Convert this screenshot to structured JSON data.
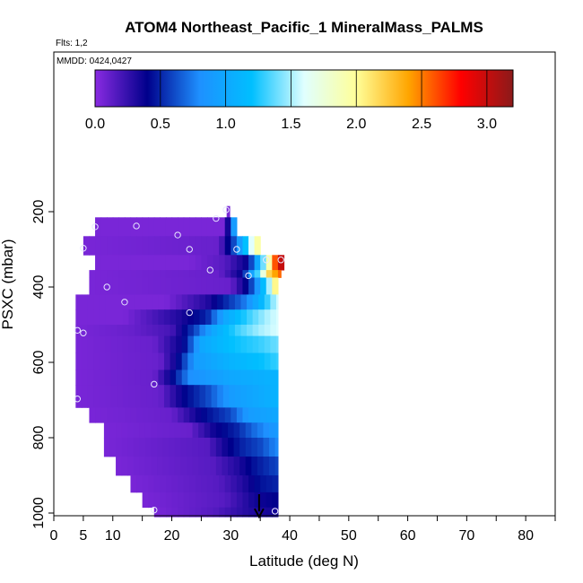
{
  "chart_data": {
    "type": "heatmap",
    "title": "ATOM4 Northeast_Pacific_1 MineralMass_PALMS",
    "subtitle_flights": "Flts: 1,2",
    "subtitle_dates": "MMDD: 0424,0427",
    "xlabel": "Latitude (deg N)",
    "ylabel": "PSXC (mbar)",
    "xlim": [
      0,
      85
    ],
    "ylim": [
      1010,
      30
    ],
    "y_inverted": true,
    "grid": false,
    "x_ticks": [
      "0",
      "5",
      "10",
      "20",
      "30",
      "40",
      "50",
      "60",
      "70",
      "80"
    ],
    "y_ticks": [
      "200",
      "400",
      "600",
      "800",
      "1000"
    ],
    "colorbar": {
      "range": [
        0,
        3.2
      ],
      "ticks": [
        "0.0",
        "0.5",
        "1.0",
        "1.5",
        "2.0",
        "2.5",
        "3.0"
      ],
      "colors": [
        "#8a2be2",
        "#00008b",
        "#1e90ff",
        "#00bfff",
        "#e0ffff",
        "#ffff99",
        "#ffa500",
        "#ff0000",
        "#8b1a1a"
      ]
    },
    "rows": [
      {
        "p_top": 185,
        "p_bot": 215,
        "lat_min": 29.3,
        "lat_max": 29.8,
        "vals": [
          [
            29.3,
            0.05
          ]
        ]
      },
      {
        "p_top": 215,
        "p_bot": 265,
        "lat_min": 7,
        "lat_max": 31,
        "vals": [
          [
            7,
            0.05
          ],
          [
            29,
            0.05
          ],
          [
            29.6,
            0.4
          ],
          [
            30.5,
            0.9
          ]
        ]
      },
      {
        "p_top": 265,
        "p_bot": 315,
        "lat_min": 5,
        "lat_max": 35,
        "vals": [
          [
            5,
            0.05
          ],
          [
            28,
            0.1
          ],
          [
            30.5,
            0.6
          ],
          [
            32.5,
            1.2
          ],
          [
            34,
            1.8
          ],
          [
            35,
            2.1
          ]
        ]
      },
      {
        "p_top": 315,
        "p_bot": 355,
        "lat_min": 7,
        "lat_max": 39,
        "vals": [
          [
            7,
            0.05
          ],
          [
            23,
            0.05
          ],
          [
            29,
            0.15
          ],
          [
            33,
            0.4
          ],
          [
            36,
            1.6
          ],
          [
            37.5,
            2.6
          ],
          [
            39,
            3.2
          ]
        ]
      },
      {
        "p_top": 355,
        "p_bot": 375,
        "lat_min": 6,
        "lat_max": 38.5,
        "vals": [
          [
            6,
            0.05
          ],
          [
            28,
            0.1
          ],
          [
            32,
            0.4
          ],
          [
            35,
            1.5
          ],
          [
            36.5,
            2.2
          ],
          [
            38.5,
            2.6
          ]
        ]
      },
      {
        "p_top": 375,
        "p_bot": 420,
        "lat_min": 6,
        "lat_max": 38,
        "vals": [
          [
            6,
            0.05
          ],
          [
            30,
            0.1
          ],
          [
            33,
            0.45
          ],
          [
            35,
            1.0
          ],
          [
            36.5,
            1.5
          ],
          [
            38,
            2.3
          ]
        ]
      },
      {
        "p_top": 420,
        "p_bot": 460,
        "lat_min": 3.7,
        "lat_max": 38,
        "vals": [
          [
            3.7,
            0.05
          ],
          [
            19,
            0.05
          ],
          [
            26,
            0.3
          ],
          [
            29,
            0.5
          ],
          [
            32,
            0.7
          ],
          [
            35,
            1.1
          ],
          [
            38,
            1.6
          ]
        ]
      },
      {
        "p_top": 460,
        "p_bot": 500,
        "lat_min": 3.7,
        "lat_max": 38,
        "vals": [
          [
            3.7,
            0.05
          ],
          [
            12,
            0.05
          ],
          [
            21,
            0.3
          ],
          [
            26,
            0.5
          ],
          [
            29,
            1.0
          ],
          [
            33,
            1.3
          ],
          [
            36,
            1.5
          ],
          [
            38,
            1.6
          ]
        ]
      },
      {
        "p_top": 500,
        "p_bot": 530,
        "lat_min": 3.7,
        "lat_max": 38,
        "vals": [
          [
            3.7,
            0.05
          ],
          [
            13,
            0.1
          ],
          [
            20,
            0.2
          ],
          [
            24,
            0.6
          ],
          [
            27,
            1.0
          ],
          [
            31,
            1.3
          ],
          [
            35,
            1.5
          ],
          [
            38,
            1.6
          ]
        ]
      },
      {
        "p_top": 530,
        "p_bot": 575,
        "lat_min": 3.7,
        "lat_max": 38,
        "vals": [
          [
            3.7,
            0.05
          ],
          [
            17,
            0.1
          ],
          [
            22,
            0.4
          ],
          [
            25,
            1.0
          ],
          [
            30,
            1.2
          ],
          [
            35,
            1.3
          ],
          [
            38,
            1.4
          ]
        ]
      },
      {
        "p_top": 575,
        "p_bot": 620,
        "lat_min": 3.7,
        "lat_max": 38,
        "vals": [
          [
            3.7,
            0.05
          ],
          [
            18,
            0.1
          ],
          [
            21,
            0.4
          ],
          [
            24,
            0.9
          ],
          [
            30,
            1.1
          ],
          [
            35,
            1.2
          ],
          [
            38,
            1.3
          ]
        ]
      },
      {
        "p_top": 620,
        "p_bot": 660,
        "lat_min": 3.7,
        "lat_max": 38,
        "vals": [
          [
            3.7,
            0.05
          ],
          [
            17,
            0.1
          ],
          [
            20,
            0.4
          ],
          [
            23,
            0.8
          ],
          [
            30,
            1.0
          ],
          [
            38,
            1.1
          ]
        ]
      },
      {
        "p_top": 660,
        "p_bot": 720,
        "lat_min": 3.7,
        "lat_max": 38,
        "vals": [
          [
            3.7,
            0.05
          ],
          [
            18,
            0.1
          ],
          [
            22,
            0.4
          ],
          [
            26,
            0.6
          ],
          [
            30,
            0.9
          ],
          [
            38,
            1.1
          ]
        ]
      },
      {
        "p_top": 720,
        "p_bot": 760,
        "lat_min": 6,
        "lat_max": 38,
        "vals": [
          [
            6,
            0.05
          ],
          [
            20,
            0.1
          ],
          [
            25,
            0.4
          ],
          [
            30,
            0.6
          ],
          [
            33,
            0.9
          ],
          [
            38,
            1.0
          ]
        ]
      },
      {
        "p_top": 760,
        "p_bot": 800,
        "lat_min": 8.5,
        "lat_max": 38,
        "vals": [
          [
            8.5,
            0.05
          ],
          [
            23,
            0.1
          ],
          [
            27,
            0.35
          ],
          [
            31,
            0.5
          ],
          [
            34,
            0.7
          ],
          [
            38,
            0.9
          ]
        ]
      },
      {
        "p_top": 800,
        "p_bot": 850,
        "lat_min": 8.5,
        "lat_max": 38,
        "vals": [
          [
            8.5,
            0.05
          ],
          [
            26,
            0.15
          ],
          [
            29,
            0.35
          ],
          [
            32,
            0.5
          ],
          [
            35,
            0.6
          ],
          [
            38,
            0.8
          ]
        ]
      },
      {
        "p_top": 850,
        "p_bot": 900,
        "lat_min": 10.5,
        "lat_max": 38,
        "vals": [
          [
            10.5,
            0.05
          ],
          [
            27,
            0.15
          ],
          [
            31,
            0.3
          ],
          [
            34,
            0.45
          ],
          [
            38,
            0.6
          ]
        ]
      },
      {
        "p_top": 900,
        "p_bot": 945,
        "lat_min": 13,
        "lat_max": 38,
        "vals": [
          [
            13,
            0.05
          ],
          [
            28,
            0.15
          ],
          [
            32,
            0.3
          ],
          [
            35,
            0.45
          ],
          [
            38,
            0.5
          ]
        ]
      },
      {
        "p_top": 945,
        "p_bot": 985,
        "lat_min": 15,
        "lat_max": 38,
        "vals": [
          [
            15,
            0.05
          ],
          [
            29,
            0.15
          ],
          [
            34,
            0.35
          ],
          [
            38,
            0.4
          ]
        ]
      },
      {
        "p_top": 985,
        "p_bot": 1010,
        "lat_min": 17,
        "lat_max": 38,
        "vals": [
          [
            17,
            0.05
          ],
          [
            27,
            0.15
          ],
          [
            33,
            0.3
          ],
          [
            38,
            0.35
          ]
        ]
      }
    ],
    "profile_points": [
      {
        "lat": 29.2,
        "p": 195
      },
      {
        "lat": 27.5,
        "p": 218
      },
      {
        "lat": 7,
        "p": 240
      },
      {
        "lat": 14,
        "p": 238
      },
      {
        "lat": 21,
        "p": 262
      },
      {
        "lat": 5,
        "p": 297
      },
      {
        "lat": 23,
        "p": 300
      },
      {
        "lat": 31,
        "p": 300
      },
      {
        "lat": 36,
        "p": 328
      },
      {
        "lat": 38.5,
        "p": 328
      },
      {
        "lat": 26.5,
        "p": 355
      },
      {
        "lat": 33,
        "p": 370
      },
      {
        "lat": 9,
        "p": 400
      },
      {
        "lat": 12,
        "p": 440
      },
      {
        "lat": 23,
        "p": 468
      },
      {
        "lat": 4,
        "p": 515
      },
      {
        "lat": 5,
        "p": 522
      },
      {
        "lat": 17,
        "p": 658
      },
      {
        "lat": 4,
        "p": 697
      },
      {
        "lat": 17,
        "p": 992
      },
      {
        "lat": 37.5,
        "p": 995
      }
    ],
    "arrow": {
      "lat": 34.8,
      "p_from": 950,
      "p_to": 1010
    }
  }
}
